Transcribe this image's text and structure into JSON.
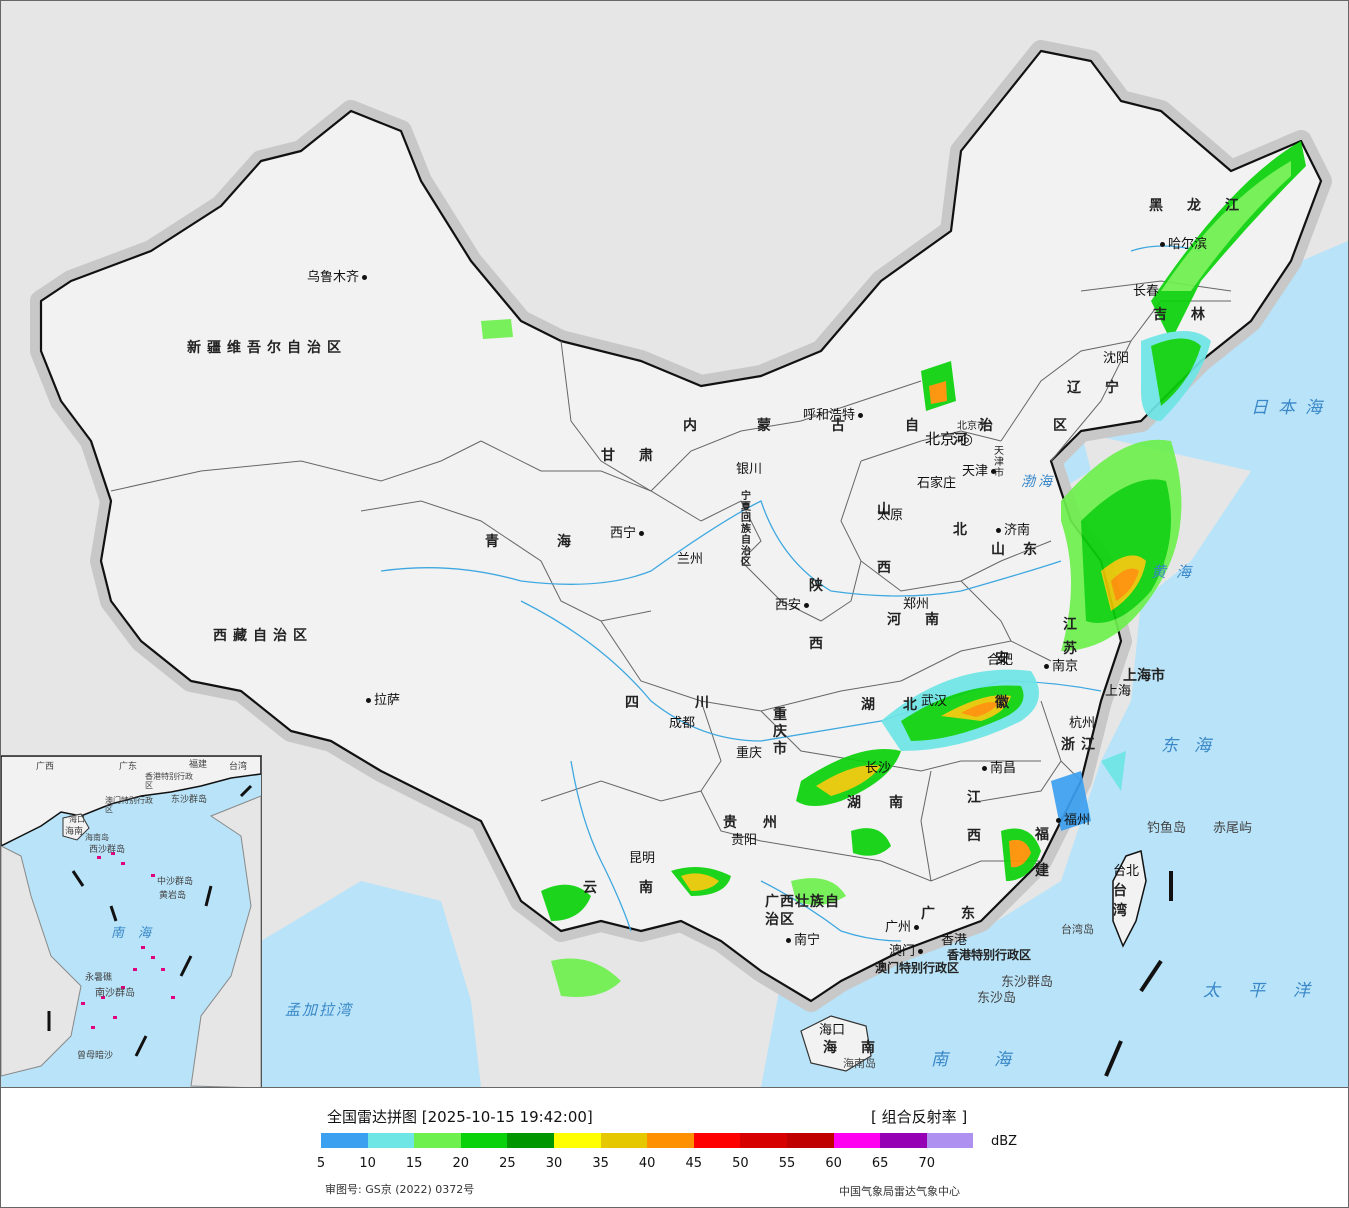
{
  "map": {
    "cities": [
      {
        "name": "乌鲁木齐",
        "dot": "right"
      },
      {
        "name": "拉萨",
        "dot": "left"
      },
      {
        "name": "西宁",
        "dot": "right"
      },
      {
        "name": "兰州",
        "dot": "left"
      },
      {
        "name": "银川",
        "dot": "below"
      },
      {
        "name": "呼和浩特",
        "dot": "right"
      },
      {
        "name": "北京",
        "dot": "capital"
      },
      {
        "name": "天津",
        "dot": "right"
      },
      {
        "name": "石家庄",
        "dot": "right"
      },
      {
        "name": "太原",
        "dot": "above"
      },
      {
        "name": "济南",
        "dot": "left"
      },
      {
        "name": "郑州",
        "dot": "above"
      },
      {
        "name": "西安",
        "dot": "right"
      },
      {
        "name": "成都",
        "dot": "above"
      },
      {
        "name": "重庆",
        "dot": "above"
      },
      {
        "name": "贵阳",
        "dot": "above"
      },
      {
        "name": "昆明",
        "dot": "below"
      },
      {
        "name": "南宁",
        "dot": "left"
      },
      {
        "name": "广州",
        "dot": "right"
      },
      {
        "name": "澳门",
        "dot": "right"
      },
      {
        "name": "香港",
        "dot": "above"
      },
      {
        "name": "海口",
        "dot": "above"
      },
      {
        "name": "长沙",
        "dot": "above"
      },
      {
        "name": "武汉",
        "dot": "left"
      },
      {
        "name": "南昌",
        "dot": "left"
      },
      {
        "name": "合肥",
        "dot": "above"
      },
      {
        "name": "南京",
        "dot": "left"
      },
      {
        "name": "上海",
        "dot": "above"
      },
      {
        "name": "杭州",
        "dot": "above"
      },
      {
        "name": "福州",
        "dot": "left"
      },
      {
        "name": "台北",
        "dot": "above"
      },
      {
        "name": "沈阳",
        "dot": "below"
      },
      {
        "name": "长春",
        "dot": "above"
      },
      {
        "name": "哈尔滨",
        "dot": "left"
      }
    ],
    "provinces": [
      "新疆维吾尔自治区",
      "西藏自治区",
      "青海",
      "甘肃",
      "内蒙古自治区",
      "宁夏回族自治区",
      "陕西",
      "山西",
      "河北",
      "北京市",
      "天津市",
      "山东",
      "河南",
      "四川",
      "重庆市",
      "贵州",
      "云南",
      "广西壮族自治区",
      "广东",
      "海南",
      "湖南",
      "湖北",
      "江西",
      "安徽",
      "江苏",
      "上海市",
      "浙江",
      "福建",
      "台湾",
      "辽宁",
      "吉林",
      "黑龙江",
      "香港特别行政区",
      "澳门特别行政区"
    ],
    "seas": [
      "日本海",
      "渤海",
      "黄海",
      "东海",
      "太平洋",
      "南海",
      "孟加拉湾"
    ],
    "islands": [
      "钓鱼岛",
      "赤尾屿",
      "台湾岛",
      "东沙群岛",
      "东沙岛",
      "海南岛"
    ],
    "inset": {
      "labels": [
        "广西",
        "广东",
        "福建",
        "台湾",
        "海南",
        "香港特别行政区",
        "澳门特别行政区",
        "东沙群岛",
        "西沙群岛",
        "中沙群岛",
        "黄岩岛",
        "南海",
        "永暑礁",
        "南沙群岛",
        "曾母暗沙",
        "海口",
        "海南岛"
      ]
    },
    "colors": {
      "land": "#f0f0f0",
      "foreign": "#e6e6e6",
      "water": "#b8e3f8",
      "border_halo": "#c8c8c8"
    }
  },
  "legend": {
    "title": "全国雷达拼图 [2025-10-15 19:42:00]",
    "product": "[ 组合反射率 ]",
    "unit": "dBZ",
    "ticks": [
      "5",
      "10",
      "15",
      "20",
      "25",
      "30",
      "35",
      "40",
      "45",
      "50",
      "55",
      "60",
      "65",
      "70"
    ],
    "colors": [
      "#3ca0f0",
      "#6ee6e6",
      "#6ef04e",
      "#0ad20a",
      "#009600",
      "#ffff00",
      "#e6c800",
      "#ff9000",
      "#ff0000",
      "#d60000",
      "#c00000",
      "#ff00f0",
      "#9600b4",
      "#ad90f0"
    ],
    "review_number": "审图号: GS京 (2022) 0372号",
    "agency": "中国气象局雷达气象中心"
  }
}
